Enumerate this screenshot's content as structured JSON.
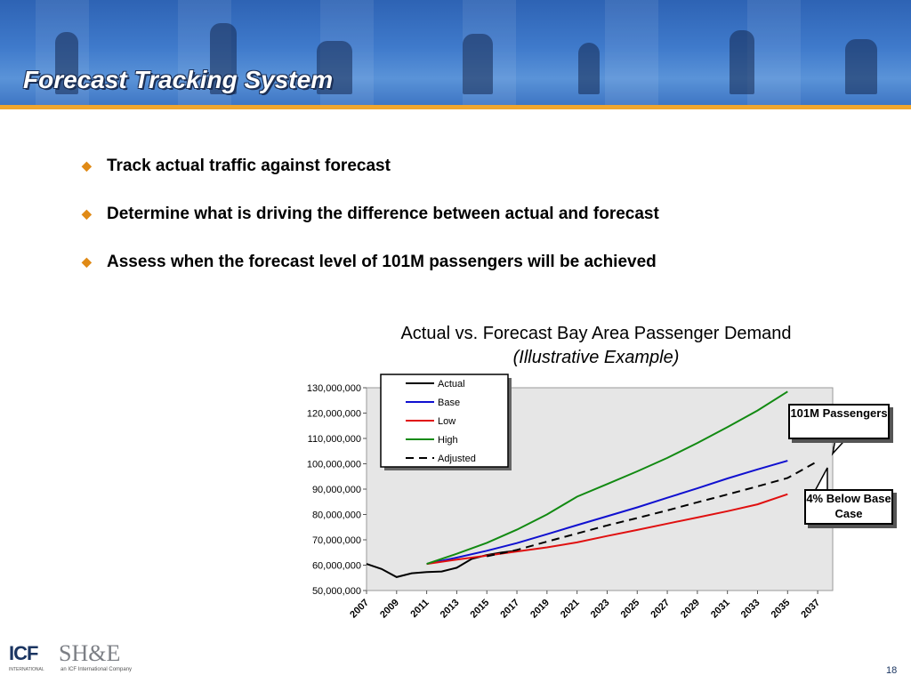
{
  "slide": {
    "title": "Forecast Tracking System",
    "page_number": "18"
  },
  "bullets": [
    "Track actual traffic against forecast",
    "Determine what is driving the difference between actual and forecast",
    "Assess when the forecast level of 101M passengers will be achieved"
  ],
  "callouts": {
    "target": "101M Passengers",
    "below": "4% Below Base Case"
  },
  "logos": {
    "icf": "ICF",
    "icf_sub": "INTERNATIONAL",
    "she": "SH&E",
    "she_sub": "an ICF International Company"
  },
  "colors": {
    "accent": "#f0a62e",
    "title_bg": "#2e63b4",
    "plot_bg": "#e6e6e6"
  },
  "chart_data": {
    "type": "line",
    "title": "Actual vs. Forecast Bay Area Passenger Demand",
    "subtitle": "(Illustrative Example)",
    "xlabel": "",
    "ylabel": "",
    "ylim": [
      50000000,
      130000000
    ],
    "xlim": [
      2007,
      2038
    ],
    "x_ticks": [
      2007,
      2009,
      2011,
      2013,
      2015,
      2017,
      2019,
      2021,
      2023,
      2025,
      2027,
      2029,
      2031,
      2033,
      2035,
      2037
    ],
    "y_ticks": [
      50000000,
      60000000,
      70000000,
      80000000,
      90000000,
      100000000,
      110000000,
      120000000,
      130000000
    ],
    "y_tick_labels": [
      "50,000,000",
      "60,000,000",
      "70,000,000",
      "80,000,000",
      "90,000,000",
      "100,000,000",
      "110,000,000",
      "120,000,000",
      "130,000,000"
    ],
    "grid": false,
    "legend_position": "top-left",
    "series": [
      {
        "name": "Actual",
        "color": "#000000",
        "dash": false,
        "x": [
          2007,
          2008,
          2009,
          2010,
          2011,
          2012,
          2013,
          2014,
          2015,
          2016,
          2017
        ],
        "y": [
          60500000,
          58500000,
          55300000,
          56800000,
          57300000,
          57500000,
          59000000,
          62500000,
          64000000,
          65000000,
          65700000
        ]
      },
      {
        "name": "Base",
        "color": "#1010d0",
        "dash": false,
        "x": [
          2011,
          2013,
          2015,
          2017,
          2019,
          2021,
          2023,
          2025,
          2027,
          2029,
          2031,
          2033,
          2035
        ],
        "y": [
          60500000,
          63000000,
          65700000,
          68700000,
          72200000,
          75800000,
          79300000,
          82800000,
          86600000,
          90300000,
          94200000,
          97800000,
          101200000
        ]
      },
      {
        "name": "Low",
        "color": "#e01010",
        "dash": false,
        "x": [
          2011,
          2013,
          2015,
          2017,
          2019,
          2021,
          2023,
          2025,
          2027,
          2029,
          2031,
          2033,
          2035
        ],
        "y": [
          60500000,
          62200000,
          63800000,
          65400000,
          67000000,
          69000000,
          71500000,
          73900000,
          76400000,
          78800000,
          81300000,
          84000000,
          88000000
        ]
      },
      {
        "name": "High",
        "color": "#128a12",
        "dash": false,
        "x": [
          2011,
          2013,
          2015,
          2017,
          2019,
          2021,
          2023,
          2025,
          2027,
          2029,
          2031,
          2033,
          2035
        ],
        "y": [
          60500000,
          64500000,
          68800000,
          74000000,
          80000000,
          87000000,
          92000000,
          97000000,
          102300000,
          108200000,
          114500000,
          121000000,
          128500000
        ]
      },
      {
        "name": "Adjusted",
        "color": "#000000",
        "dash": true,
        "x": [
          2015,
          2017,
          2019,
          2021,
          2023,
          2025,
          2027,
          2029,
          2031,
          2033,
          2035,
          2037
        ],
        "y": [
          63500000,
          66000000,
          69300000,
          72500000,
          75700000,
          78600000,
          81600000,
          84800000,
          87900000,
          91100000,
          94400000,
          101000000
        ]
      }
    ]
  }
}
